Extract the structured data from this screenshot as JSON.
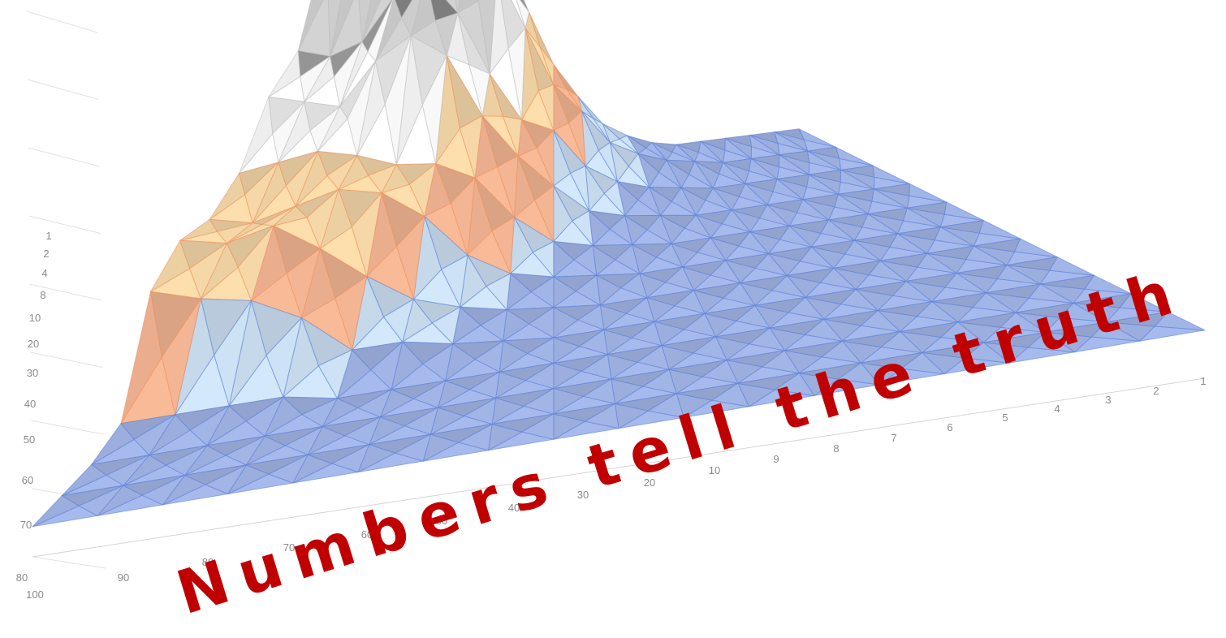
{
  "chart_data": {
    "type": "surface",
    "x_ticks": [
      "1",
      "2",
      "3",
      "4",
      "5",
      "6",
      "7",
      "8",
      "9",
      "10",
      "20",
      "30",
      "40",
      "50",
      "60",
      "70",
      "80",
      "90",
      "100"
    ],
    "y_ticks": [
      "80",
      "70",
      "60",
      "50",
      "40",
      "30",
      "20",
      "10",
      "8",
      "4",
      "2",
      "1"
    ],
    "caption": "Numbers tell the truth",
    "bands": [
      {
        "max": 1.0,
        "color": "#9fb4ec"
      },
      {
        "max": 1.6,
        "color": "#cfe6fb"
      },
      {
        "max": 2.6,
        "color": "#f9b48e"
      },
      {
        "max": 3.6,
        "color": "#fddba6"
      },
      {
        "max": 4.6,
        "color": "#ffffff"
      },
      {
        "max": 5.6,
        "color": "#cfcfcf"
      },
      {
        "max": 6.6,
        "color": "#f9d26a"
      },
      {
        "max": 7.6,
        "color": "#fbd58a"
      },
      {
        "max": 8.6,
        "color": "#d3ebf9"
      },
      {
        "max": 99,
        "color": "#a6c1f0"
      }
    ],
    "z_grid": [
      [
        0.6,
        0.6,
        0.6,
        0.6,
        0.6,
        0.6,
        0.6,
        0.6,
        0.6,
        0.6,
        0.6,
        0.6,
        0.6,
        0.6,
        0.6,
        0.6,
        0.6,
        0.6,
        0.6
      ],
      [
        0.6,
        0.6,
        0.6,
        0.6,
        0.6,
        0.6,
        0.6,
        0.6,
        0.6,
        0.6,
        0.6,
        0.6,
        0.6,
        0.6,
        0.6,
        0.6,
        0.6,
        0.6,
        0.6
      ],
      [
        0.6,
        0.6,
        0.6,
        0.6,
        0.6,
        0.6,
        0.6,
        0.6,
        0.6,
        0.6,
        0.6,
        0.6,
        0.6,
        0.6,
        0.6,
        0.6,
        0.6,
        0.6,
        0.6
      ],
      [
        0.6,
        0.6,
        0.6,
        0.6,
        0.6,
        0.6,
        0.6,
        0.6,
        0.6,
        0.6,
        0.6,
        0.6,
        0.6,
        0.6,
        0.6,
        0.8,
        0.8,
        0.8,
        0.8
      ],
      [
        0.6,
        0.6,
        0.6,
        0.6,
        0.6,
        0.6,
        0.6,
        0.6,
        0.6,
        0.6,
        0.6,
        0.7,
        0.8,
        1.0,
        1.0,
        1.8,
        2.3,
        2.5,
        2.8
      ],
      [
        0.6,
        0.6,
        0.6,
        0.6,
        0.6,
        0.6,
        0.6,
        0.6,
        0.6,
        0.6,
        0.7,
        0.8,
        1.0,
        1.3,
        1.9,
        2.6,
        3.2,
        3.0,
        3.2
      ],
      [
        0.6,
        0.6,
        0.6,
        0.6,
        0.6,
        0.6,
        0.6,
        0.6,
        0.6,
        0.7,
        0.8,
        1.0,
        1.5,
        2.4,
        3.0,
        3.2,
        3.0,
        2.8,
        3.0
      ],
      [
        0.6,
        0.6,
        0.6,
        0.6,
        0.6,
        0.6,
        0.6,
        0.6,
        0.7,
        0.8,
        1.0,
        1.6,
        2.5,
        2.9,
        3.0,
        3.3,
        3.5,
        3.4,
        3.3
      ],
      [
        0.6,
        0.6,
        0.6,
        0.6,
        0.6,
        0.6,
        0.6,
        0.7,
        0.8,
        1.0,
        1.6,
        2.3,
        3.2,
        4.5,
        5.0,
        4.6,
        3.8,
        4.0,
        4.2
      ],
      [
        0.6,
        0.6,
        0.6,
        0.6,
        0.6,
        0.6,
        0.7,
        0.8,
        1.0,
        1.4,
        2.2,
        2.5,
        3.5,
        4.8,
        5.6,
        5.3,
        4.5,
        4.3,
        4.5
      ],
      [
        0.6,
        0.6,
        0.6,
        0.6,
        0.6,
        0.7,
        0.8,
        1.0,
        1.3,
        2.0,
        2.6,
        3.8,
        5.0,
        5.6,
        6.2,
        5.5,
        6.0,
        6.4,
        6.2
      ],
      [
        0.6,
        0.6,
        0.6,
        0.6,
        0.6,
        0.6,
        0.7,
        0.9,
        1.2,
        1.8,
        2.5,
        3.6,
        4.8,
        5.4,
        6.4,
        7.0,
        7.4,
        7.8,
        8.2
      ]
    ]
  }
}
